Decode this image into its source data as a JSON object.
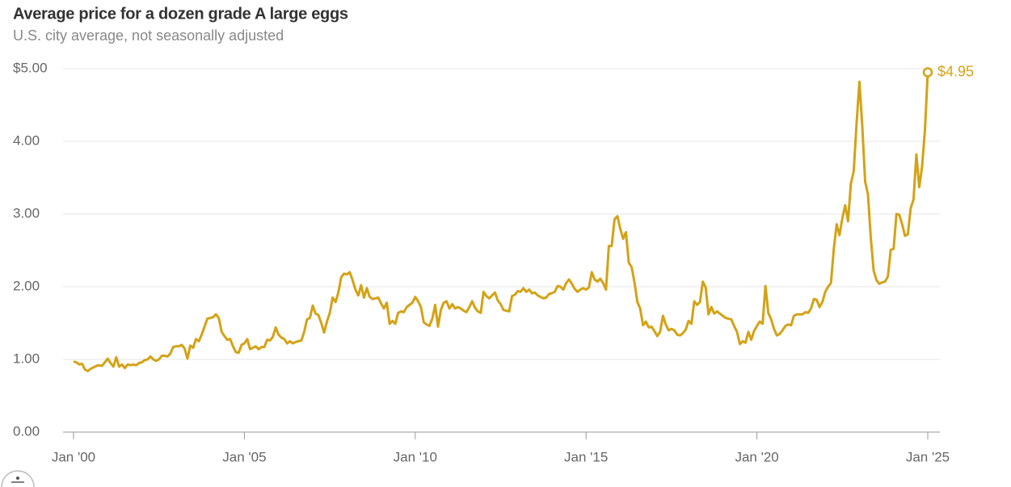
{
  "chart_data": {
    "type": "line",
    "title": "Average price for a dozen grade A large eggs",
    "subtitle": "U.S. city average, not seasonally adjusted",
    "x": [
      "2000-01",
      "2000-02",
      "2000-03",
      "2000-04",
      "2000-05",
      "2000-06",
      "2000-07",
      "2000-08",
      "2000-09",
      "2000-10",
      "2000-11",
      "2000-12",
      "2001-01",
      "2001-02",
      "2001-03",
      "2001-04",
      "2001-05",
      "2001-06",
      "2001-07",
      "2001-08",
      "2001-09",
      "2001-10",
      "2001-11",
      "2001-12",
      "2002-01",
      "2002-02",
      "2002-03",
      "2002-04",
      "2002-05",
      "2002-06",
      "2002-07",
      "2002-08",
      "2002-09",
      "2002-10",
      "2002-11",
      "2002-12",
      "2003-01",
      "2003-02",
      "2003-03",
      "2003-04",
      "2003-05",
      "2003-06",
      "2003-07",
      "2003-08",
      "2003-09",
      "2003-10",
      "2003-11",
      "2003-12",
      "2004-01",
      "2004-02",
      "2004-03",
      "2004-04",
      "2004-05",
      "2004-06",
      "2004-07",
      "2004-08",
      "2004-09",
      "2004-10",
      "2004-11",
      "2004-12",
      "2005-01",
      "2005-02",
      "2005-03",
      "2005-04",
      "2005-05",
      "2005-06",
      "2005-07",
      "2005-08",
      "2005-09",
      "2005-10",
      "2005-11",
      "2005-12",
      "2006-01",
      "2006-02",
      "2006-03",
      "2006-04",
      "2006-05",
      "2006-06",
      "2006-07",
      "2006-08",
      "2006-09",
      "2006-10",
      "2006-11",
      "2006-12",
      "2007-01",
      "2007-02",
      "2007-03",
      "2007-04",
      "2007-05",
      "2007-06",
      "2007-07",
      "2007-08",
      "2007-09",
      "2007-10",
      "2007-11",
      "2007-12",
      "2008-01",
      "2008-02",
      "2008-03",
      "2008-04",
      "2008-05",
      "2008-06",
      "2008-07",
      "2008-08",
      "2008-09",
      "2008-10",
      "2008-11",
      "2008-12",
      "2009-01",
      "2009-02",
      "2009-03",
      "2009-04",
      "2009-05",
      "2009-06",
      "2009-07",
      "2009-08",
      "2009-09",
      "2009-10",
      "2009-11",
      "2009-12",
      "2010-01",
      "2010-02",
      "2010-03",
      "2010-04",
      "2010-05",
      "2010-06",
      "2010-07",
      "2010-08",
      "2010-09",
      "2010-10",
      "2010-11",
      "2010-12",
      "2011-01",
      "2011-02",
      "2011-03",
      "2011-04",
      "2011-05",
      "2011-06",
      "2011-07",
      "2011-08",
      "2011-09",
      "2011-10",
      "2011-11",
      "2011-12",
      "2012-01",
      "2012-02",
      "2012-03",
      "2012-04",
      "2012-05",
      "2012-06",
      "2012-07",
      "2012-08",
      "2012-09",
      "2012-10",
      "2012-11",
      "2012-12",
      "2013-01",
      "2013-02",
      "2013-03",
      "2013-04",
      "2013-05",
      "2013-06",
      "2013-07",
      "2013-08",
      "2013-09",
      "2013-10",
      "2013-11",
      "2013-12",
      "2014-01",
      "2014-02",
      "2014-03",
      "2014-04",
      "2014-05",
      "2014-06",
      "2014-07",
      "2014-08",
      "2014-09",
      "2014-10",
      "2014-11",
      "2014-12",
      "2015-01",
      "2015-02",
      "2015-03",
      "2015-04",
      "2015-05",
      "2015-06",
      "2015-07",
      "2015-08",
      "2015-09",
      "2015-10",
      "2015-11",
      "2015-12",
      "2016-01",
      "2016-02",
      "2016-03",
      "2016-04",
      "2016-05",
      "2016-06",
      "2016-07",
      "2016-08",
      "2016-09",
      "2016-10",
      "2016-11",
      "2016-12",
      "2017-01",
      "2017-02",
      "2017-03",
      "2017-04",
      "2017-05",
      "2017-06",
      "2017-07",
      "2017-08",
      "2017-09",
      "2017-10",
      "2017-11",
      "2017-12",
      "2018-01",
      "2018-02",
      "2018-03",
      "2018-04",
      "2018-05",
      "2018-06",
      "2018-07",
      "2018-08",
      "2018-09",
      "2018-10",
      "2018-11",
      "2018-12",
      "2019-01",
      "2019-02",
      "2019-03",
      "2019-04",
      "2019-05",
      "2019-06",
      "2019-07",
      "2019-08",
      "2019-09",
      "2019-10",
      "2019-11",
      "2019-12",
      "2020-01",
      "2020-02",
      "2020-03",
      "2020-04",
      "2020-05",
      "2020-06",
      "2020-07",
      "2020-08",
      "2020-09",
      "2020-10",
      "2020-11",
      "2020-12",
      "2021-01",
      "2021-02",
      "2021-03",
      "2021-04",
      "2021-05",
      "2021-06",
      "2021-07",
      "2021-08",
      "2021-09",
      "2021-10",
      "2021-11",
      "2021-12",
      "2022-01",
      "2022-02",
      "2022-03",
      "2022-04",
      "2022-05",
      "2022-06",
      "2022-07",
      "2022-08",
      "2022-09",
      "2022-10",
      "2022-11",
      "2022-12",
      "2023-01",
      "2023-02",
      "2023-03",
      "2023-04",
      "2023-05",
      "2023-06",
      "2023-07",
      "2023-08",
      "2023-09",
      "2023-10",
      "2023-11",
      "2023-12",
      "2024-01",
      "2024-02",
      "2024-03",
      "2024-04",
      "2024-05",
      "2024-06",
      "2024-07",
      "2024-08",
      "2024-09",
      "2024-10",
      "2024-11",
      "2024-12",
      "2025-01"
    ],
    "series": [
      {
        "color": "#d4a216",
        "values": [
          0.97,
          0.96,
          0.93,
          0.94,
          0.86,
          0.84,
          0.87,
          0.89,
          0.91,
          0.92,
          0.91,
          0.96,
          1.01,
          0.95,
          0.9,
          1.03,
          0.9,
          0.93,
          0.88,
          0.93,
          0.92,
          0.93,
          0.92,
          0.95,
          0.96,
          0.99,
          1.0,
          1.04,
          1.0,
          0.98,
          1.0,
          1.05,
          1.05,
          1.04,
          1.08,
          1.17,
          1.18,
          1.18,
          1.2,
          1.15,
          1.01,
          1.19,
          1.16,
          1.28,
          1.25,
          1.34,
          1.45,
          1.56,
          1.57,
          1.58,
          1.62,
          1.57,
          1.38,
          1.32,
          1.27,
          1.28,
          1.18,
          1.1,
          1.09,
          1.2,
          1.22,
          1.28,
          1.14,
          1.16,
          1.18,
          1.14,
          1.17,
          1.17,
          1.27,
          1.26,
          1.31,
          1.44,
          1.34,
          1.3,
          1.28,
          1.22,
          1.25,
          1.22,
          1.24,
          1.25,
          1.26,
          1.38,
          1.55,
          1.57,
          1.74,
          1.63,
          1.61,
          1.5,
          1.37,
          1.52,
          1.64,
          1.85,
          1.79,
          1.92,
          2.13,
          2.18,
          2.17,
          2.2,
          2.09,
          1.96,
          1.88,
          2.02,
          1.85,
          1.98,
          1.86,
          1.83,
          1.84,
          1.85,
          1.77,
          1.7,
          1.78,
          1.49,
          1.53,
          1.49,
          1.64,
          1.66,
          1.65,
          1.72,
          1.75,
          1.78,
          1.86,
          1.8,
          1.72,
          1.51,
          1.48,
          1.46,
          1.56,
          1.75,
          1.45,
          1.68,
          1.78,
          1.8,
          1.7,
          1.76,
          1.7,
          1.72,
          1.7,
          1.67,
          1.65,
          1.72,
          1.8,
          1.71,
          1.66,
          1.64,
          1.93,
          1.87,
          1.84,
          1.88,
          1.92,
          1.81,
          1.76,
          1.68,
          1.67,
          1.66,
          1.87,
          1.89,
          1.94,
          1.93,
          1.98,
          1.93,
          1.96,
          1.91,
          1.92,
          1.88,
          1.86,
          1.84,
          1.85,
          1.9,
          1.91,
          1.93,
          2.01,
          2.0,
          1.96,
          2.05,
          2.1,
          2.04,
          1.97,
          1.93,
          1.96,
          1.98,
          1.96,
          1.99,
          2.2,
          2.1,
          2.07,
          2.11,
          2.05,
          1.96,
          2.56,
          2.56,
          2.93,
          2.97,
          2.8,
          2.66,
          2.75,
          2.33,
          2.27,
          2.06,
          1.79,
          1.7,
          1.47,
          1.52,
          1.44,
          1.45,
          1.39,
          1.32,
          1.38,
          1.6,
          1.48,
          1.4,
          1.42,
          1.4,
          1.34,
          1.33,
          1.36,
          1.41,
          1.53,
          1.49,
          1.8,
          1.75,
          1.79,
          2.07,
          1.99,
          1.62,
          1.72,
          1.63,
          1.66,
          1.63,
          1.6,
          1.57,
          1.56,
          1.55,
          1.46,
          1.38,
          1.21,
          1.25,
          1.23,
          1.38,
          1.27,
          1.39,
          1.46,
          1.52,
          1.49,
          2.01,
          1.64,
          1.55,
          1.42,
          1.33,
          1.35,
          1.4,
          1.46,
          1.48,
          1.47,
          1.6,
          1.62,
          1.62,
          1.62,
          1.65,
          1.64,
          1.7,
          1.83,
          1.82,
          1.72,
          1.79,
          1.93,
          2.0,
          2.05,
          2.52,
          2.86,
          2.71,
          2.94,
          3.12,
          2.9,
          3.42,
          3.59,
          4.25,
          4.82,
          4.21,
          3.45,
          3.27,
          2.67,
          2.22,
          2.09,
          2.04,
          2.06,
          2.07,
          2.14,
          2.51,
          2.52,
          3.0,
          2.99,
          2.86,
          2.7,
          2.72,
          3.08,
          3.2,
          3.82,
          3.37,
          3.65,
          4.15,
          4.95
        ]
      }
    ],
    "annotations": [
      {
        "x": "2025-01",
        "value": 4.95,
        "label": "$4.95"
      }
    ],
    "xlim": [
      "2000-01",
      "2025-01"
    ],
    "xticks": [
      {
        "value": "2000-01",
        "label": "Jan '00"
      },
      {
        "value": "2005-01",
        "label": "Jan '05"
      },
      {
        "value": "2010-01",
        "label": "Jan '10"
      },
      {
        "value": "2015-01",
        "label": "Jan '15"
      },
      {
        "value": "2020-01",
        "label": "Jan '20"
      },
      {
        "value": "2025-01",
        "label": "Jan '25"
      }
    ],
    "ylim": [
      0,
      5
    ],
    "yticks": [
      {
        "value": 0,
        "label": "0.00"
      },
      {
        "value": 1,
        "label": "1.00"
      },
      {
        "value": 2,
        "label": "2.00"
      },
      {
        "value": 3,
        "label": "3.00"
      },
      {
        "value": 4,
        "label": "4.00"
      },
      {
        "value": 5,
        "label": "$5.00"
      }
    ],
    "grid": true
  }
}
